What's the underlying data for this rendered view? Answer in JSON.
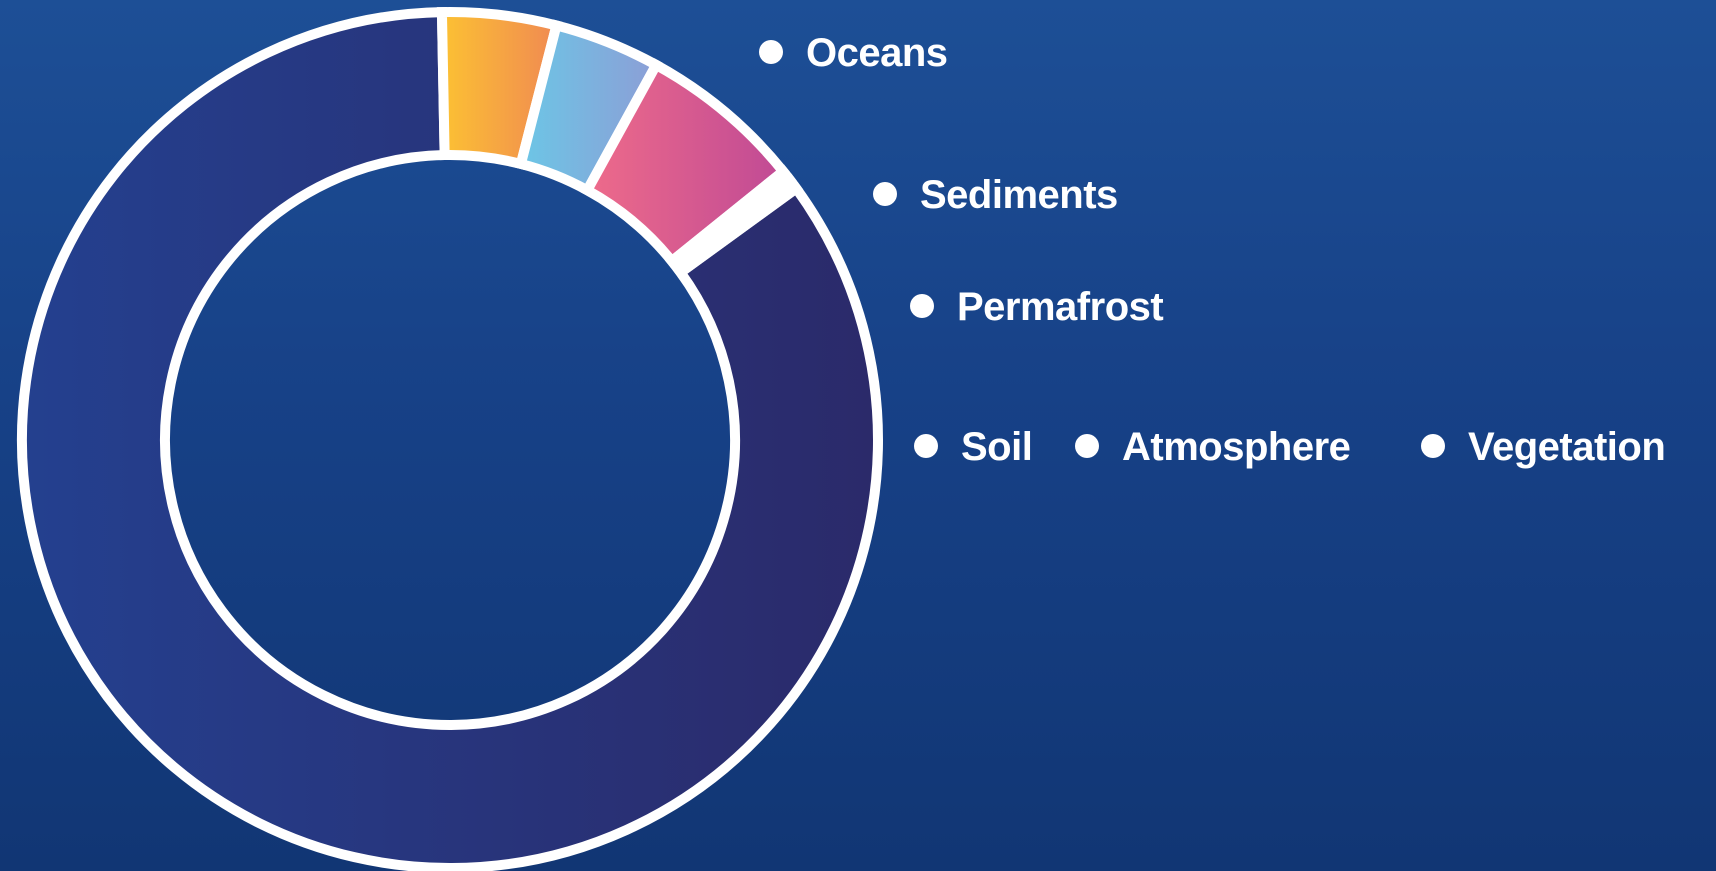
{
  "chart_data": {
    "type": "pie",
    "style": "donut",
    "title": "",
    "slices": [
      {
        "label": "Oceans",
        "value": 84.7
      },
      {
        "label": "Sediments",
        "value": 4.3
      },
      {
        "label": "Permafrost",
        "value": 4.0
      },
      {
        "label": "Soil",
        "value": 6.2
      },
      {
        "label": "Atmosphere",
        "value": 0.4
      },
      {
        "label": "Vegetation",
        "value": 0.4
      }
    ],
    "legend_position": "right",
    "colors": {
      "Oceans": [
        "#24408f",
        "#2b2a6a"
      ],
      "Sediments": [
        "#fcc133",
        "#f08a52"
      ],
      "Permafrost": [
        "#6cc6e6",
        "#8c9ed6"
      ],
      "Soil": [
        "#ee6b8a",
        "#c04a95"
      ],
      "Atmosphere": [
        "#ffffff",
        "#ffffff"
      ],
      "Vegetation": [
        "#ffffff",
        "#ffffff"
      ]
    },
    "separator_color": "#ffffff"
  }
}
